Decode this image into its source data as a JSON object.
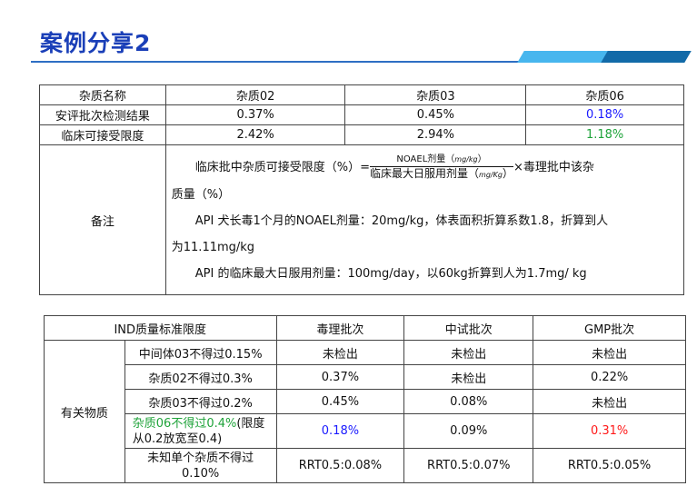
{
  "title": "案例分享2",
  "colors": {
    "title": "#1a3fb8",
    "blue": "#1a1aff",
    "green": "#1fa33a",
    "red": "#ff1a1a"
  },
  "table1": {
    "headers": [
      "杂质名称",
      "杂质02",
      "杂质03",
      "杂质06"
    ],
    "rows": [
      {
        "label": "安评批次检测结果",
        "values": [
          "0.37%",
          "0.45%",
          "0.18%"
        ]
      },
      {
        "label": "临床可接受限度",
        "values": [
          "2.42%",
          "2.94%",
          "1.18%"
        ]
      }
    ],
    "note_label": "备注",
    "note": {
      "formula_left": "临床批中杂质可接受限度（%）=",
      "num": "NOAEL剂量（",
      "num_unit": "mg/kg",
      "num_close": "）",
      "den": "临床最大日服用剂量（",
      "den_unit": "mg/Kg",
      "den_close": "）",
      "formula_right": "×毒理批中该杂",
      "line2": "质量（%）",
      "line3": "API 犬长毒1个月的NOAEL剂量：20mg/kg，体表面积折算系数1.8，折算到人",
      "line4": "为11.11mg/kg",
      "line5": "API 的临床最大日服用剂量：100mg/day，以60kg折算到人为1.7mg/ kg"
    }
  },
  "table2": {
    "headers": [
      "IND质量标准限度",
      "毒理批次",
      "中试批次",
      "GMP批次"
    ],
    "group": "有关物质",
    "rows": [
      {
        "label": "中间体03不得过0.15%",
        "values": [
          "未检出",
          "未检出",
          "未检出"
        ]
      },
      {
        "label": "杂质02不得过0.3%",
        "values": [
          "0.37%",
          "未检出",
          "0.22%"
        ]
      },
      {
        "label": "杂质03不得过0.2%",
        "values": [
          "0.45%",
          "0.08%",
          "未检出"
        ]
      },
      {
        "label_green": "杂质06不得过0.4%",
        "label": "(限度从0.2放宽至0.4)",
        "values": [
          "0.18%",
          "0.09%",
          "0.31%"
        ]
      },
      {
        "label": "未知单个杂质不得过0.10%",
        "values": [
          "RRT0.5:0.08%",
          "RRT0.5:0.07%",
          "RRT0.5:0.05%"
        ]
      }
    ]
  }
}
